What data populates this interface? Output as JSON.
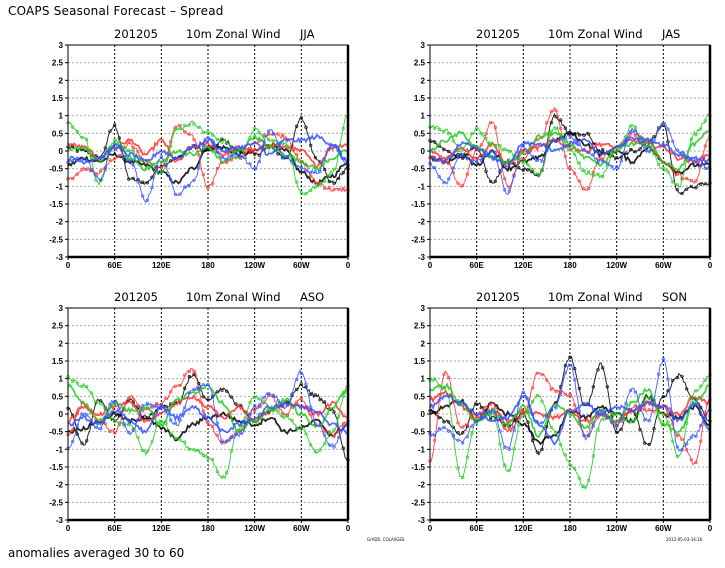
{
  "header": {
    "title": "COAPS Seasonal Forecast – Spread"
  },
  "footer": {
    "note": "anomalies averaged 30 to 60",
    "credit": "GrADS: COLA/IGES",
    "timestamp": "2012-05-03-14:16"
  },
  "colors": {
    "black": "#000000",
    "red": "#ff3333",
    "green": "#22cc22",
    "blue": "#3355ff",
    "grid": "#aaaaaa"
  },
  "chart_data": [
    {
      "type": "line",
      "title_parts": [
        "201205",
        "10m  Zonal Wind",
        "JJA"
      ],
      "xlabel": "",
      "ylabel": "",
      "x_range": [
        0,
        360
      ],
      "xticks": [
        0,
        60,
        120,
        180,
        240,
        300,
        360
      ],
      "xtick_labels": [
        "0",
        "60E",
        "120E",
        "180",
        "120W",
        "60W",
        "0"
      ],
      "ylim": [
        -3,
        3
      ],
      "yticks": [
        3,
        2.5,
        2,
        1.5,
        1,
        0.5,
        0,
        -0.5,
        -1,
        -1.5,
        -2,
        -2.5,
        -3
      ],
      "ytick_labels": [
        "3",
        "2.5",
        "2",
        "1.5",
        "1",
        "0.5",
        "0",
        "-0.5",
        "-1",
        "-1.5",
        "-2",
        "-2.5",
        "-3"
      ],
      "grid": true,
      "x": [
        0,
        20,
        40,
        60,
        80,
        100,
        120,
        140,
        160,
        180,
        200,
        220,
        240,
        260,
        280,
        300,
        320,
        340,
        360
      ],
      "series": [
        {
          "name": "black-1",
          "color": "black",
          "values": [
            0.1,
            0.0,
            -0.2,
            0.7,
            -0.8,
            -0.9,
            -0.4,
            -0.2,
            0.1,
            0.0,
            0.3,
            0.0,
            -0.1,
            0.1,
            -0.2,
            0.9,
            -0.2,
            -0.9,
            -0.5
          ]
        },
        {
          "name": "black-2",
          "color": "black",
          "values": [
            -0.4,
            -0.2,
            -0.3,
            -0.1,
            -0.3,
            -0.4,
            -0.6,
            -0.9,
            -0.5,
            0.1,
            0.1,
            -0.1,
            0.0,
            0.2,
            0.0,
            -0.6,
            -0.9,
            -0.7,
            -0.3
          ]
        },
        {
          "name": "red-1",
          "color": "red",
          "values": [
            -0.8,
            -0.5,
            -0.6,
            -0.2,
            0.2,
            -0.3,
            -0.5,
            0.7,
            0.4,
            -1.0,
            -0.3,
            -0.2,
            0.2,
            0.5,
            0.4,
            -0.3,
            -0.9,
            -1.1,
            -1.1
          ]
        },
        {
          "name": "red-2",
          "color": "red",
          "values": [
            0.2,
            0.1,
            -0.2,
            0.1,
            0.3,
            -0.1,
            0.3,
            -0.3,
            0.1,
            0.2,
            -0.1,
            0.1,
            0.0,
            0.2,
            0.1,
            0.0,
            -0.4,
            0.1,
            0.2
          ]
        },
        {
          "name": "green-1",
          "color": "green",
          "values": [
            0.8,
            0.4,
            -0.9,
            0.3,
            0.0,
            -0.3,
            -0.6,
            0.6,
            0.8,
            0.5,
            0.3,
            -0.2,
            0.6,
            0.3,
            0.2,
            -1.2,
            -1.0,
            -0.6,
            1.0
          ]
        },
        {
          "name": "green-2",
          "color": "green",
          "values": [
            0.0,
            0.1,
            -0.3,
            0.2,
            -0.2,
            -0.5,
            -0.3,
            0.0,
            -0.1,
            0.1,
            -0.3,
            0.0,
            0.4,
            0.1,
            -0.1,
            -0.3,
            -0.5,
            -0.2,
            0.0
          ]
        },
        {
          "name": "blue-1",
          "color": "blue",
          "values": [
            -0.3,
            -0.2,
            -0.8,
            0.2,
            -0.3,
            -1.4,
            -0.2,
            -1.2,
            -0.9,
            0.4,
            -0.2,
            -0.1,
            -0.5,
            0.6,
            -0.2,
            -0.5,
            -0.6,
            0.2,
            -0.4
          ]
        },
        {
          "name": "blue-2",
          "color": "blue",
          "values": [
            -0.2,
            -0.3,
            -0.2,
            0.1,
            -0.1,
            -0.3,
            0.0,
            -0.2,
            0.1,
            0.3,
            0.0,
            0.1,
            0.2,
            -0.1,
            0.3,
            0.3,
            0.4,
            0.2,
            -0.3
          ]
        }
      ]
    },
    {
      "type": "line",
      "title_parts": [
        "201205",
        "10m  Zonal Wind",
        "JAS"
      ],
      "xlabel": "",
      "ylabel": "",
      "x_range": [
        0,
        360
      ],
      "xticks": [
        0,
        60,
        120,
        180,
        240,
        300,
        360
      ],
      "xtick_labels": [
        "0",
        "60E",
        "120E",
        "180",
        "120W",
        "60W",
        "0"
      ],
      "ylim": [
        -3,
        3
      ],
      "yticks": [
        3,
        2.5,
        2,
        1.5,
        1,
        0.5,
        0,
        -0.5,
        -1,
        -1.5,
        -2,
        -2.5,
        -3
      ],
      "ytick_labels": [
        "3",
        "2.5",
        "2",
        "1.5",
        "1",
        "0.5",
        "0",
        "-0.5",
        "-1",
        "-1.5",
        "-2",
        "-2.5",
        "-3"
      ],
      "grid": true,
      "x": [
        0,
        20,
        40,
        60,
        80,
        100,
        120,
        140,
        160,
        180,
        200,
        220,
        240,
        260,
        280,
        300,
        320,
        340,
        360
      ],
      "series": [
        {
          "name": "black-1",
          "color": "black",
          "values": [
            0.3,
            0.0,
            -0.2,
            0.1,
            -0.9,
            -0.3,
            -0.5,
            -0.7,
            1.0,
            0.5,
            0.5,
            0.0,
            -0.2,
            0.0,
            0.2,
            0.7,
            -1.2,
            -1.0,
            -0.9
          ]
        },
        {
          "name": "black-2",
          "color": "black",
          "values": [
            -0.2,
            -0.3,
            -0.1,
            -0.4,
            0.0,
            -0.5,
            -0.3,
            -0.2,
            0.3,
            0.5,
            0.2,
            -0.1,
            0.0,
            -0.3,
            0.1,
            -0.3,
            -0.6,
            -0.4,
            -0.4
          ]
        },
        {
          "name": "red-1",
          "color": "red",
          "values": [
            -0.2,
            -0.3,
            -1.0,
            0.0,
            0.8,
            -1.0,
            -0.2,
            0.3,
            1.2,
            -0.5,
            -1.1,
            -0.2,
            0.1,
            0.5,
            0.3,
            -0.3,
            -0.7,
            -0.9,
            0.4
          ]
        },
        {
          "name": "red-2",
          "color": "red",
          "values": [
            0.0,
            -0.2,
            0.1,
            -0.2,
            0.2,
            -0.4,
            0.0,
            0.1,
            0.3,
            0.1,
            0.0,
            0.2,
            0.1,
            0.3,
            0.2,
            0.1,
            -0.2,
            -0.3,
            -0.1
          ]
        },
        {
          "name": "green-1",
          "color": "green",
          "values": [
            0.7,
            0.6,
            0.0,
            0.6,
            0.2,
            0.0,
            -0.3,
            -0.7,
            0.7,
            0.0,
            -0.6,
            -0.7,
            0.0,
            0.7,
            0.1,
            -0.5,
            -1.0,
            0.5,
            1.0
          ]
        },
        {
          "name": "green-2",
          "color": "green",
          "values": [
            0.0,
            0.3,
            0.5,
            0.1,
            -0.2,
            -0.3,
            -0.1,
            0.4,
            0.5,
            0.2,
            -0.2,
            -0.4,
            0.1,
            0.2,
            0.3,
            -0.3,
            -0.5,
            0.2,
            0.6
          ]
        },
        {
          "name": "blue-1",
          "color": "blue",
          "values": [
            -0.4,
            -0.9,
            -0.1,
            -0.3,
            0.0,
            -1.2,
            0.1,
            -0.3,
            0.3,
            0.4,
            0.0,
            -0.3,
            -0.5,
            0.6,
            0.0,
            0.8,
            0.0,
            -0.3,
            -0.5
          ]
        },
        {
          "name": "blue-2",
          "color": "blue",
          "values": [
            -0.2,
            -0.3,
            0.2,
            0.1,
            -0.2,
            -0.4,
            0.2,
            0.2,
            0.0,
            0.2,
            0.3,
            -0.1,
            0.1,
            0.4,
            0.3,
            0.2,
            -0.1,
            -0.2,
            -0.3
          ]
        }
      ]
    },
    {
      "type": "line",
      "title_parts": [
        "201205",
        "10m  Zonal Wind",
        "ASO"
      ],
      "xlabel": "",
      "ylabel": "",
      "x_range": [
        0,
        360
      ],
      "xticks": [
        0,
        60,
        120,
        180,
        240,
        300,
        360
      ],
      "xtick_labels": [
        "0",
        "60E",
        "120E",
        "180",
        "120W",
        "60W",
        "0"
      ],
      "ylim": [
        -3,
        3
      ],
      "yticks": [
        3,
        2.5,
        2,
        1.5,
        1,
        0.5,
        0,
        -0.5,
        -1,
        -1.5,
        -2,
        -2.5,
        -3
      ],
      "ytick_labels": [
        "3",
        "2.5",
        "2",
        "1.5",
        "1",
        "0.5",
        "0",
        "-0.5",
        "-1",
        "-1.5",
        "-2",
        "-2.5",
        "-3"
      ],
      "grid": true,
      "x": [
        0,
        20,
        40,
        60,
        80,
        100,
        120,
        140,
        160,
        180,
        200,
        220,
        240,
        260,
        280,
        300,
        320,
        340,
        360
      ],
      "series": [
        {
          "name": "black-1",
          "color": "black",
          "values": [
            0.2,
            -0.9,
            0.4,
            -0.2,
            0.4,
            -0.1,
            0.2,
            0.3,
            1.1,
            0.4,
            0.7,
            0.2,
            -0.2,
            0.1,
            0.3,
            0.8,
            0.5,
            0.1,
            -1.3
          ]
        },
        {
          "name": "black-2",
          "color": "black",
          "values": [
            -0.5,
            -0.4,
            -0.2,
            0.0,
            -0.2,
            -0.1,
            -0.4,
            -0.7,
            -0.3,
            -0.1,
            0.0,
            -0.2,
            -0.3,
            -0.1,
            -0.5,
            -0.4,
            -0.2,
            -0.6,
            -0.3
          ]
        },
        {
          "name": "red-1",
          "color": "red",
          "values": [
            -0.6,
            0.3,
            -0.2,
            -0.5,
            0.5,
            0.1,
            0.3,
            0.8,
            1.3,
            -0.3,
            -0.8,
            -0.5,
            0.1,
            0.5,
            0.0,
            0.4,
            -0.3,
            -0.6,
            -0.2
          ]
        },
        {
          "name": "red-2",
          "color": "red",
          "values": [
            -0.2,
            0.2,
            0.0,
            0.2,
            0.3,
            -0.2,
            0.0,
            0.3,
            0.5,
            0.2,
            -0.1,
            0.2,
            -0.2,
            0.1,
            0.3,
            0.2,
            0.0,
            0.3,
            -0.1
          ]
        },
        {
          "name": "green-1",
          "color": "green",
          "values": [
            1.0,
            0.8,
            0.3,
            -0.2,
            -0.3,
            -1.1,
            -0.2,
            -0.7,
            -1.0,
            -1.2,
            -1.8,
            -0.4,
            0.5,
            0.2,
            -0.1,
            -0.4,
            -1.1,
            -0.5,
            0.8
          ]
        },
        {
          "name": "green-2",
          "color": "green",
          "values": [
            0.8,
            0.3,
            -0.2,
            0.3,
            0.1,
            0.2,
            -0.3,
            0.4,
            0.6,
            0.8,
            0.3,
            -0.5,
            -0.2,
            0.1,
            0.4,
            0.0,
            -0.4,
            0.2,
            0.7
          ]
        },
        {
          "name": "blue-1",
          "color": "blue",
          "values": [
            -1.0,
            0.0,
            -0.4,
            0.4,
            -0.6,
            0.3,
            0.2,
            -0.3,
            0.7,
            0.8,
            -0.8,
            -0.6,
            0.2,
            0.6,
            0.2,
            1.2,
            -0.3,
            -0.9,
            -0.3
          ]
        },
        {
          "name": "blue-2",
          "color": "blue",
          "values": [
            -0.3,
            -0.1,
            -0.3,
            0.1,
            -0.2,
            -0.5,
            0.2,
            -0.1,
            0.2,
            -0.1,
            -0.5,
            -0.3,
            -0.1,
            0.2,
            0.3,
            0.2,
            0.1,
            -0.3,
            -0.5
          ]
        }
      ]
    },
    {
      "type": "line",
      "title_parts": [
        "201205",
        "10m  Zonal Wind",
        "SON"
      ],
      "xlabel": "",
      "ylabel": "",
      "x_range": [
        0,
        360
      ],
      "xticks": [
        0,
        60,
        120,
        180,
        240,
        300,
        360
      ],
      "xtick_labels": [
        "0",
        "60E",
        "120E",
        "180",
        "120W",
        "60W",
        "0"
      ],
      "ylim": [
        -3,
        3
      ],
      "yticks": [
        3,
        2.5,
        2,
        1.5,
        1,
        0.5,
        0,
        -0.5,
        -1,
        -1.5,
        -2,
        -2.5,
        -3
      ],
      "ytick_labels": [
        "3",
        "2.5",
        "2",
        "1.5",
        "1",
        "0.5",
        "0",
        "-0.5",
        "-1",
        "-1.5",
        "-2",
        "-2.5",
        "-3"
      ],
      "grid": true,
      "x": [
        0,
        20,
        40,
        60,
        80,
        100,
        120,
        140,
        160,
        180,
        200,
        220,
        240,
        260,
        280,
        300,
        320,
        340,
        360
      ],
      "series": [
        {
          "name": "black-1",
          "color": "black",
          "values": [
            0.1,
            -0.2,
            -0.6,
            0.3,
            -0.1,
            -0.3,
            0.0,
            -1.1,
            0.3,
            1.6,
            0.2,
            1.4,
            -0.5,
            0.1,
            -0.9,
            0.5,
            1.1,
            0.4,
            -0.2
          ]
        },
        {
          "name": "black-2",
          "color": "black",
          "values": [
            0.0,
            0.2,
            0.4,
            -0.2,
            0.3,
            0.0,
            -0.3,
            -0.8,
            -0.6,
            0.1,
            -0.1,
            0.2,
            0.0,
            -0.2,
            0.5,
            0.0,
            -0.1,
            0.2,
            -0.3
          ]
        },
        {
          "name": "red-1",
          "color": "red",
          "values": [
            -1.3,
            1.2,
            -0.4,
            0.0,
            0.3,
            -0.5,
            0.0,
            1.2,
            0.7,
            0.5,
            -0.6,
            0.0,
            -0.3,
            0.2,
            0.1,
            0.2,
            -0.6,
            -1.4,
            0.4
          ]
        },
        {
          "name": "red-2",
          "color": "red",
          "values": [
            0.4,
            0.6,
            0.2,
            -0.1,
            0.1,
            -0.2,
            0.1,
            0.0,
            -0.1,
            0.1,
            -0.2,
            0.0,
            -0.2,
            0.1,
            0.3,
            0.2,
            0.0,
            0.5,
            0.3
          ]
        },
        {
          "name": "green-1",
          "color": "green",
          "values": [
            1.0,
            0.7,
            -1.8,
            -0.2,
            0.0,
            -1.6,
            0.0,
            0.5,
            -0.5,
            -1.4,
            -2.1,
            -0.2,
            0.0,
            -0.2,
            0.5,
            0.0,
            -1.2,
            0.6,
            1.1
          ]
        },
        {
          "name": "green-2",
          "color": "green",
          "values": [
            0.7,
            0.8,
            0.3,
            -0.2,
            0.1,
            -0.3,
            0.2,
            -0.6,
            0.3,
            0.0,
            -0.4,
            0.1,
            -0.2,
            0.3,
            0.7,
            -0.3,
            -0.5,
            0.3,
            0.8
          ]
        },
        {
          "name": "blue-1",
          "color": "blue",
          "values": [
            -0.6,
            -0.4,
            -0.8,
            -0.2,
            0.1,
            -1.0,
            0.6,
            -0.3,
            0.2,
            1.4,
            -0.7,
            0.1,
            -0.3,
            0.7,
            -0.2,
            1.5,
            -1.0,
            -0.6,
            0.1
          ]
        },
        {
          "name": "blue-2",
          "color": "blue",
          "values": [
            0.2,
            0.5,
            0.3,
            0.0,
            -0.2,
            -0.1,
            0.5,
            -0.3,
            -0.8,
            0.1,
            0.3,
            0.0,
            0.2,
            0.1,
            0.3,
            0.2,
            -0.2,
            0.3,
            -0.4
          ]
        }
      ]
    }
  ]
}
